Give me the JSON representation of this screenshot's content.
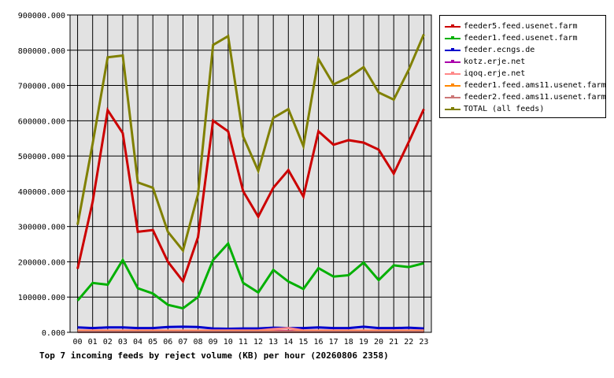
{
  "chart_data": {
    "type": "line",
    "title": "Top 7 incoming feeds by reject volume (KB) per hour (20260806 2358)",
    "categories": [
      "00",
      "01",
      "02",
      "03",
      "04",
      "05",
      "06",
      "07",
      "08",
      "09",
      "10",
      "11",
      "12",
      "13",
      "14",
      "15",
      "16",
      "17",
      "18",
      "19",
      "20",
      "21",
      "22",
      "23"
    ],
    "ylim": [
      0,
      900000
    ],
    "yticks": [
      "0.000",
      "100000.000",
      "200000.000",
      "300000.000",
      "400000.000",
      "500000.000",
      "600000.000",
      "700000.000",
      "800000.000",
      "900000.000"
    ],
    "grid": true,
    "legend_position": "right",
    "series": [
      {
        "name": "feeder5.feed.usenet.farm",
        "color": "#cc0000",
        "values": [
          180000,
          370000,
          630000,
          565000,
          285000,
          290000,
          200000,
          145000,
          270000,
          600000,
          570000,
          400000,
          328000,
          410000,
          460000,
          385000,
          570000,
          532000,
          545000,
          538000,
          518000,
          450000,
          540000,
          633000
        ]
      },
      {
        "name": "feeder1.feed.usenet.farm",
        "color": "#00b000",
        "values": [
          90000,
          140000,
          135000,
          205000,
          125000,
          110000,
          78000,
          68000,
          100000,
          205000,
          252000,
          140000,
          113000,
          177000,
          144000,
          123000,
          182000,
          158000,
          162000,
          198000,
          148000,
          190000,
          185000,
          196000
        ]
      },
      {
        "name": "feeder.ecngs.de",
        "color": "#0000cc",
        "values": [
          14000,
          12000,
          14000,
          14000,
          12000,
          12000,
          15000,
          16000,
          15000,
          11000,
          10000,
          11000,
          11000,
          13000,
          12000,
          12000,
          14000,
          12000,
          12000,
          16000,
          12000,
          12000,
          13000,
          11000
        ]
      },
      {
        "name": "kotz.erje.net",
        "color": "#aa00aa",
        "values": [
          3000,
          3000,
          3000,
          3000,
          3000,
          3000,
          3000,
          3000,
          3000,
          3000,
          3000,
          3000,
          3000,
          3000,
          3000,
          3000,
          3000,
          3000,
          3000,
          3000,
          3000,
          3000,
          3000,
          3000
        ]
      },
      {
        "name": "iqoq.erje.net",
        "color": "#ff8888",
        "values": [
          5000,
          5000,
          5000,
          5000,
          5000,
          5000,
          5000,
          5000,
          5000,
          5000,
          5000,
          5000,
          5000,
          9000,
          12000,
          5000,
          5000,
          5000,
          5000,
          5000,
          5000,
          5000,
          5000,
          5000
        ]
      },
      {
        "name": "feeder1.feed.ams11.usenet.farm",
        "color": "#ff8800",
        "values": [
          2000,
          2000,
          2000,
          2000,
          2000,
          2000,
          2000,
          2000,
          2000,
          2000,
          2000,
          2000,
          2000,
          2000,
          2000,
          2000,
          2000,
          2000,
          2000,
          2000,
          2000,
          2000,
          2000,
          2000
        ]
      },
      {
        "name": "feeder2.feed.ams11.usenet.farm",
        "color": "#cc7777",
        "values": [
          1000,
          1000,
          1000,
          1000,
          1000,
          1000,
          1000,
          1000,
          1000,
          1000,
          1000,
          1000,
          1000,
          1000,
          1000,
          1000,
          1000,
          1000,
          1000,
          1000,
          1000,
          1000,
          1000,
          1000
        ]
      },
      {
        "name": "TOTAL (all feeds)",
        "color": "#808000",
        "values": [
          305000,
          535000,
          780000,
          785000,
          425000,
          410000,
          285000,
          232000,
          392000,
          815000,
          840000,
          555000,
          458000,
          608000,
          633000,
          528000,
          775000,
          703000,
          723000,
          752000,
          680000,
          660000,
          745000,
          845000
        ]
      }
    ]
  }
}
